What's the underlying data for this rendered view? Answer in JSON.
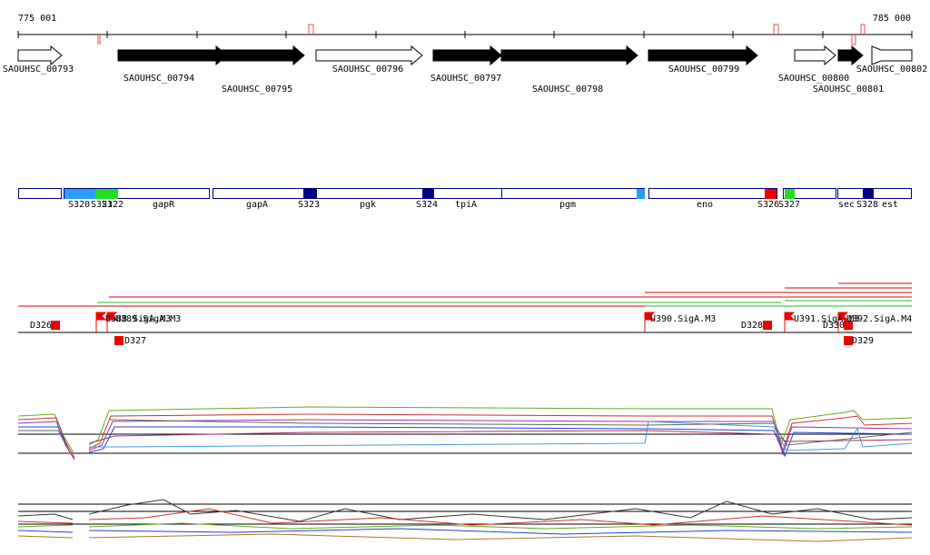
{
  "coordinates": {
    "start": "775 001",
    "end": "785 000"
  },
  "genes": [
    "SAOUHSC_00793",
    "SAOUHSC_00794",
    "SAOUHSC_00795",
    "SAOUHSC_00796",
    "SAOUHSC_00797",
    "SAOUHSC_00798",
    "SAOUHSC_00799",
    "SAOUHSC_00800",
    "SAOUHSC_00801",
    "SAOUHSC_00802"
  ],
  "segments": [
    "S320",
    "S321",
    "S322",
    "gapR",
    "gapA",
    "S323",
    "pgk",
    "S324",
    "tpiA",
    "pgm",
    "eno",
    "S326",
    "S327",
    "sec",
    "S328",
    "est"
  ],
  "features": [
    "D326",
    "U388.SigA.M3",
    "U389.SigA.M3",
    "D327",
    "U390.SigA.M3",
    "D328",
    "U391.SigA.M3",
    "D330",
    "U392.SigA.M4",
    "D329"
  ]
}
